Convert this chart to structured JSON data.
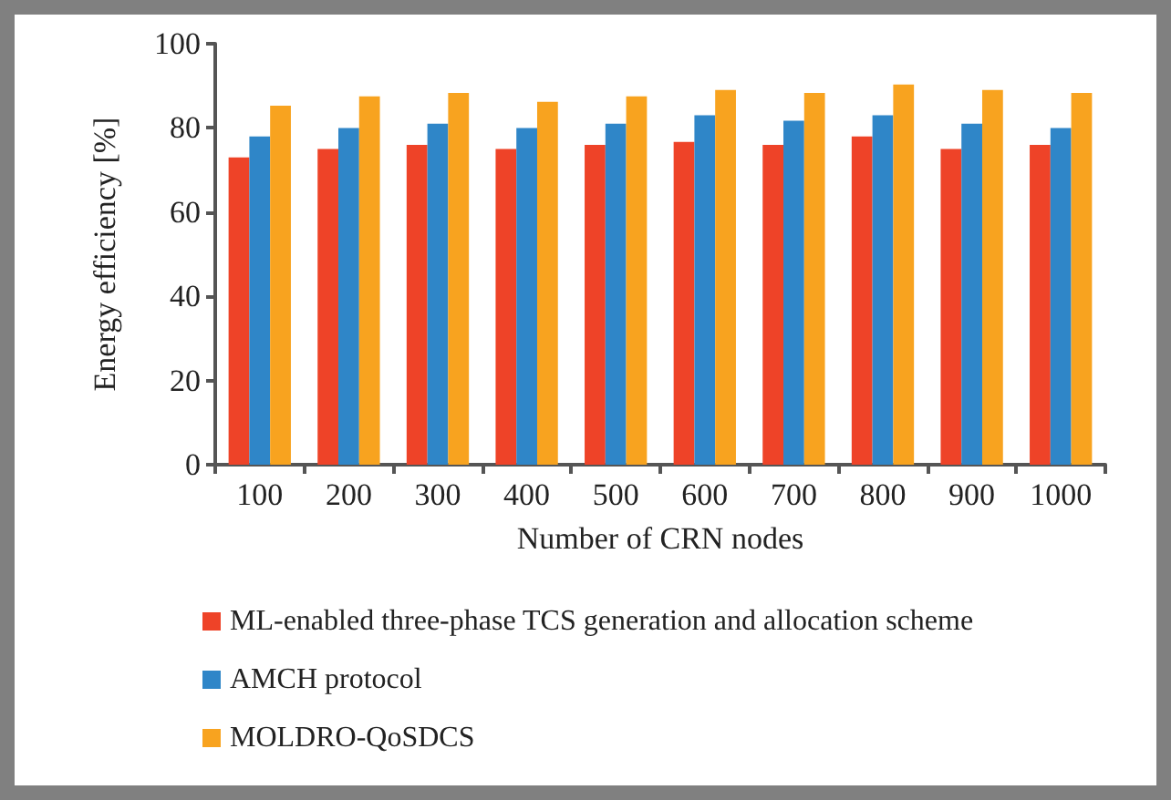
{
  "chart_data": {
    "type": "bar",
    "xlabel": "Number of CRN nodes",
    "ylabel": "Energy efficiency [%]",
    "categories": [
      "100",
      "200",
      "300",
      "400",
      "500",
      "600",
      "700",
      "800",
      "900",
      "1000"
    ],
    "series": [
      {
        "name": "ML-enabled three-phase TCS generation and allocation scheme",
        "color": "#ee4328",
        "values": [
          73,
          75,
          76,
          75,
          76,
          76.7,
          76,
          78,
          75,
          76
        ]
      },
      {
        "name": "AMCH protocol",
        "color": "#2f86c8",
        "values": [
          78,
          80,
          81,
          80,
          81,
          83,
          81.7,
          83,
          81,
          80
        ]
      },
      {
        "name": "MOLDRO-QoSDCS",
        "color": "#f8a31f",
        "values": [
          85.3,
          87.5,
          88.3,
          86.2,
          87.5,
          89,
          88.3,
          90.3,
          89,
          88.3
        ]
      }
    ],
    "ylim": [
      0,
      100
    ],
    "yticks": [
      0,
      20,
      40,
      60,
      80,
      100
    ],
    "grid": false,
    "legend": "bottom left"
  }
}
